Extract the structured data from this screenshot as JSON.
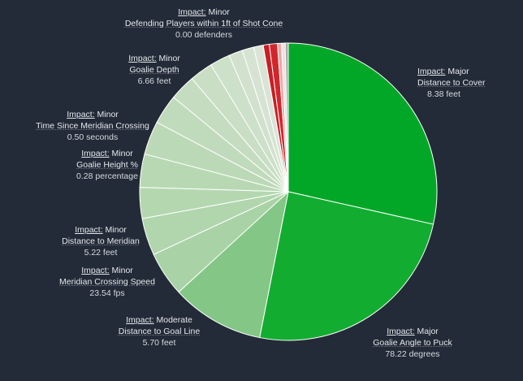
{
  "chart_data": {
    "type": "pie",
    "title": "",
    "slices": [
      {
        "impact_label": "Impact:",
        "impact": "Major",
        "feature": "Distance to Cover",
        "value_text": "8.38 feet",
        "share": 0.2897,
        "color": "#03a727"
      },
      {
        "impact_label": "Impact:",
        "impact": "Major",
        "feature": "Goalie Angle to Puck",
        "value_text": "78.22 degrees",
        "share": 0.2497,
        "color": "#12ad30"
      },
      {
        "impact_label": "Impact:",
        "impact": "Moderate",
        "feature": "Distance to Goal Line",
        "value_text": "5.70 feet",
        "share": 0.1028,
        "color": "#83c685"
      },
      {
        "impact_label": "Impact:",
        "impact": "Minor",
        "feature": "Meridian Crossing Speed",
        "value_text": "23.54 fps",
        "share": 0.0493,
        "color": "#a9d3a6"
      },
      {
        "impact_label": "Impact:",
        "impact": "Minor",
        "feature": "Distance to Meridian",
        "value_text": "5.22 feet",
        "share": 0.0411,
        "color": "#b1d6ad"
      },
      {
        "share": 0.0342,
        "color": "#b5d7b0"
      },
      {
        "impact_label": "Impact:",
        "impact": "Minor",
        "feature": "Goalie Height %",
        "value_text": "0.28 percentage",
        "share": 0.0367,
        "color": "#b8d8b3"
      },
      {
        "share": 0.0371,
        "color": "#bcd9b7"
      },
      {
        "impact_label": "Impact:",
        "impact": "Minor",
        "feature": "Time Since Meridian Crossing",
        "value_text": "0.50 seconds",
        "share": 0.0327,
        "color": "#c0dbbb"
      },
      {
        "share": 0.0285,
        "color": "#c5dcc0"
      },
      {
        "impact_label": "Impact:",
        "impact": "Minor",
        "feature": "Goalie Depth",
        "value_text": "6.66 feet",
        "share": 0.0256,
        "color": "#c9dec5"
      },
      {
        "share": 0.0223,
        "color": "#cde0c9"
      },
      {
        "share": 0.0154,
        "color": "#d2e1ce"
      },
      {
        "share": 0.0129,
        "color": "#d6e3d2"
      },
      {
        "share": 0.0105,
        "color": "#d9e4d6"
      },
      {
        "share": 0.0067,
        "color": "#c81e25"
      },
      {
        "share": 0.0089,
        "color": "#d1272c"
      },
      {
        "share": 0.0045,
        "color": "#e8a9a8"
      },
      {
        "impact_label": "Impact:",
        "impact": "Minor",
        "feature": "Defending Players within 1ft of Shot Cone",
        "value_text": "0.00 defenders",
        "share": 0.004,
        "color": "#f0dedd"
      },
      {
        "share": 0.0034,
        "color": "#a8a9ab"
      }
    ]
  }
}
